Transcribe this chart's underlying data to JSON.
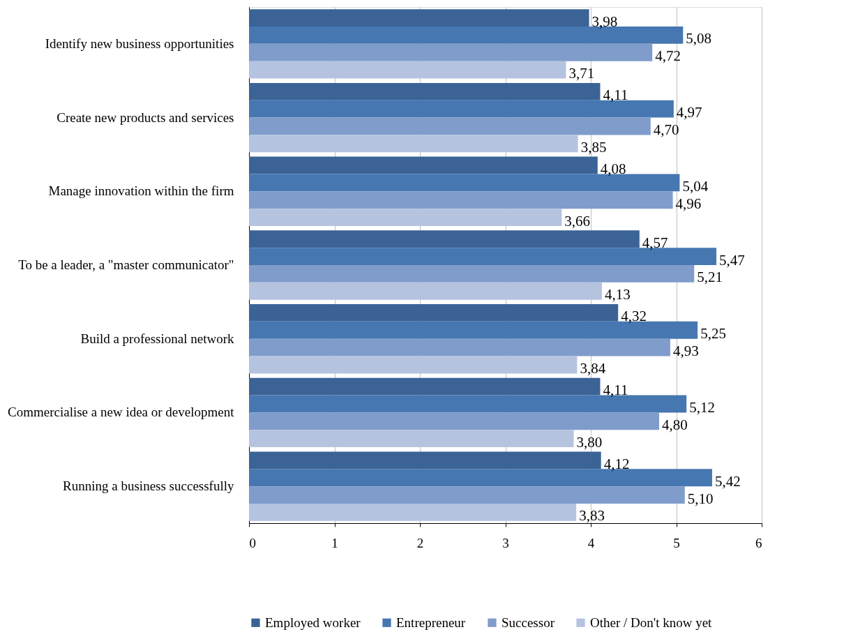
{
  "chart_data": {
    "type": "bar",
    "orientation": "horizontal",
    "categories": [
      "Identify new business opportunities",
      "Create new products and services",
      "Manage innovation within the firm",
      "To be a leader, a \"master communicator\"",
      "Build a professional network",
      "Commercialise a new idea or development",
      "Running a business successfully"
    ],
    "series": [
      {
        "name": "Employed worker",
        "color": "#3b6396",
        "values": [
          3.98,
          4.11,
          4.08,
          4.57,
          4.32,
          4.11,
          4.12
        ],
        "value_labels": [
          "3,98",
          "4,11",
          "4,08",
          "4,57",
          "4,32",
          "4,11",
          "4,12"
        ]
      },
      {
        "name": "Entrepreneur",
        "color": "#4677b1",
        "values": [
          5.08,
          4.97,
          5.04,
          5.47,
          5.25,
          5.12,
          5.42
        ],
        "value_labels": [
          "5,08",
          "4,97",
          "5,04",
          "5,47",
          "5,25",
          "5,12",
          "5,42"
        ]
      },
      {
        "name": "Successor",
        "color": "#7f9ccb",
        "values": [
          4.72,
          4.7,
          4.96,
          5.21,
          4.93,
          4.8,
          5.1
        ],
        "value_labels": [
          "4,72",
          "4,70",
          "4,96",
          "5,21",
          "4,93",
          "4,80",
          "5,10"
        ]
      },
      {
        "name": "Other / Don't know yet",
        "color": "#b5c3df",
        "values": [
          3.71,
          3.85,
          3.66,
          4.13,
          3.84,
          3.8,
          3.83
        ],
        "value_labels": [
          "3,71",
          "3,85",
          "3,66",
          "4,13",
          "3,84",
          "3,80",
          "3,83"
        ]
      }
    ],
    "xlim": [
      0,
      6
    ],
    "xticks": [
      0,
      1,
      2,
      3,
      4,
      5,
      6
    ],
    "grid": "x",
    "legend": "bottom"
  }
}
